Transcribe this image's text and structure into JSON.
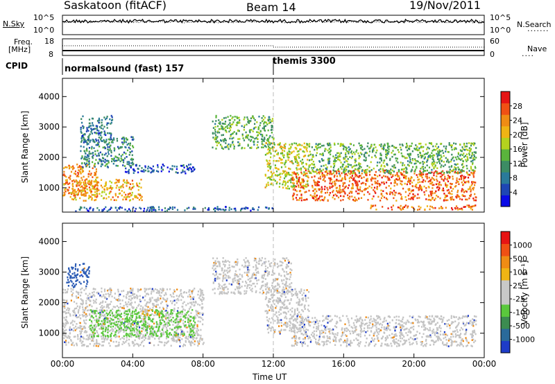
{
  "header": {
    "station": "Saskatoon (fitACF)",
    "beam": "Beam 14",
    "date": "19/Nov/2011"
  },
  "noise_panel": {
    "left_label": "N.Sky",
    "right_label": "N.Search",
    "tick_top": "10^5",
    "tick_bottom": "10^0",
    "right_tick_top": "10^5",
    "right_tick_bottom": "10^0"
  },
  "freq_panel": {
    "left_label_1": "Freq.",
    "left_label_2": "[MHz]",
    "right_label": "Nave",
    "left_tick_top": "18",
    "left_tick_bottom": "8",
    "right_tick_top": "60",
    "right_tick_bottom": "0"
  },
  "cpid": {
    "label": "CPID",
    "modes": [
      {
        "text": "normalsound (fast) 157",
        "start_hour": 0
      },
      {
        "text": "themis 3300",
        "start_hour": 12
      }
    ]
  },
  "chart_data": [
    {
      "type": "heatmap",
      "ylabel": "Slant Range [km]",
      "xlabel": "Time UT",
      "xlim": [
        0,
        24
      ],
      "ylim": [
        200,
        4600
      ],
      "y_ticks": [
        "1000",
        "2000",
        "3000",
        "4000"
      ],
      "x_ticks": [
        "00:00",
        "04:00",
        "08:00",
        "12:00",
        "16:00",
        "20:00",
        "00:00"
      ],
      "colorbar": {
        "label": "Power [dB]",
        "ticks": [
          "4",
          "8",
          "12",
          "16",
          "20",
          "24",
          "28"
        ],
        "colors": [
          "#0a0ae6",
          "#1e46b4",
          "#2a7a9a",
          "#3c8c64",
          "#5ab43c",
          "#b4d21e",
          "#f0b414",
          "#f08c14",
          "#f05014",
          "#e61414"
        ]
      },
      "dashed_line_hour": 12,
      "echo_regions": [
        {
          "t0": 0.0,
          "t1": 2.0,
          "r0": 700,
          "r1": 1800,
          "level": 24
        },
        {
          "t0": 0.5,
          "t1": 4.5,
          "r0": 600,
          "r1": 1300,
          "level": 22
        },
        {
          "t0": 1.0,
          "t1": 4.0,
          "r0": 1700,
          "r1": 2700,
          "level": 10
        },
        {
          "t0": 1.0,
          "t1": 2.8,
          "r0": 2500,
          "r1": 3400,
          "level": 8
        },
        {
          "t0": 3.5,
          "t1": 7.5,
          "r0": 1500,
          "r1": 1800,
          "level": 6
        },
        {
          "t0": 8.5,
          "t1": 12.0,
          "r0": 2300,
          "r1": 3400,
          "level": 14
        },
        {
          "t0": 11.5,
          "t1": 14.0,
          "r0": 1000,
          "r1": 2500,
          "level": 18
        },
        {
          "t0": 13.0,
          "t1": 23.5,
          "r0": 600,
          "r1": 1600,
          "level": 26
        },
        {
          "t0": 14.0,
          "t1": 23.5,
          "r0": 1500,
          "r1": 2500,
          "level": 14
        },
        {
          "t0": 0.5,
          "t1": 12.0,
          "r0": 250,
          "r1": 400,
          "level": 6
        },
        {
          "t0": 17.5,
          "t1": 23.5,
          "r0": 300,
          "r1": 450,
          "level": 26
        }
      ]
    },
    {
      "type": "heatmap",
      "ylabel": "Slant Range [km]",
      "xlabel": "Time UT",
      "xlim": [
        0,
        24
      ],
      "ylim": [
        200,
        4600
      ],
      "y_ticks": [
        "1000",
        "2000",
        "3000",
        "4000"
      ],
      "x_ticks": [
        "00:00",
        "04:00",
        "08:00",
        "12:00",
        "16:00",
        "20:00",
        "00:00"
      ],
      "colorbar": {
        "label": "Velocity [m s⁻¹]",
        "ticks": [
          "1000",
          "500",
          "100",
          "25",
          "-25",
          "-100",
          "-500",
          "-1000"
        ],
        "colors": [
          "#1e3cc8",
          "#2a6a9a",
          "#3c8c50",
          "#5ac83c",
          "#c8c8c8",
          "#c8c8c8",
          "#f0b414",
          "#f08c14",
          "#f05014",
          "#e61414"
        ]
      },
      "dashed_line_hour": 12,
      "echo_regions": [
        {
          "t0": 0.0,
          "t1": 8.0,
          "r0": 600,
          "r1": 2500,
          "kind": "gray"
        },
        {
          "t0": 1.5,
          "t1": 7.5,
          "r0": 900,
          "r1": 1800,
          "kind": "green"
        },
        {
          "t0": 4.5,
          "t1": 5.5,
          "r0": 1600,
          "r1": 1800,
          "kind": "orange"
        },
        {
          "t0": 8.5,
          "t1": 13.0,
          "r0": 2300,
          "r1": 3500,
          "kind": "gray"
        },
        {
          "t0": 11.5,
          "t1": 14.0,
          "r0": 1000,
          "r1": 2500,
          "kind": "gray"
        },
        {
          "t0": 13.0,
          "t1": 23.5,
          "r0": 600,
          "r1": 1600,
          "kind": "gray"
        },
        {
          "t0": 0.2,
          "t1": 1.5,
          "r0": 2500,
          "r1": 3300,
          "kind": "blue"
        }
      ]
    }
  ]
}
